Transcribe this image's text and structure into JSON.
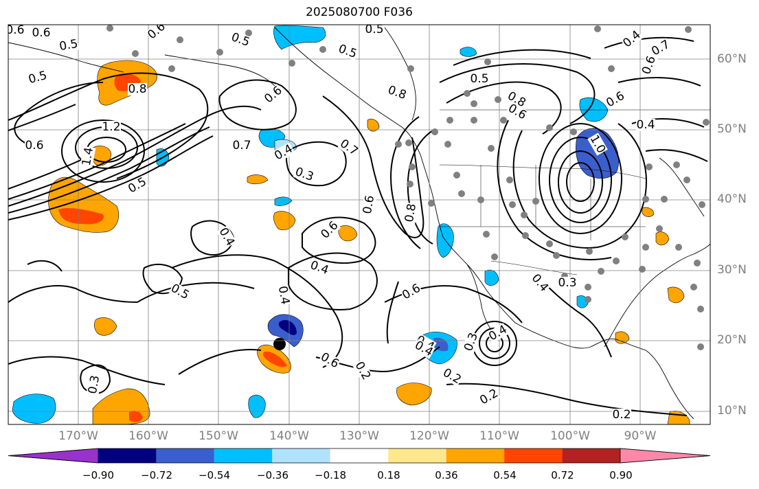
{
  "title": "2025080700 F036",
  "lat_labels": [
    "60°N",
    "50°N",
    "40°N",
    "30°N",
    "20°N",
    "10°N"
  ],
  "lon_labels": [
    "170°W",
    "160°W",
    "150°W",
    "140°W",
    "130°W",
    "120°W",
    "110°W",
    "100°W",
    "90°W"
  ],
  "colorbar": {
    "tick_labels": [
      "−0.90",
      "−0.72",
      "−0.54",
      "−0.36",
      "−0.18",
      "0.18",
      "0.36",
      "0.54",
      "0.72",
      "0.90"
    ],
    "colors": [
      "#9932cc",
      "#000080",
      "#3a5fcd",
      "#00bfff",
      "#b0e2ff",
      "#ffffff",
      "#ffe88c",
      "#ffa500",
      "#ff4500",
      "#b22222",
      "#ff88aa"
    ]
  },
  "contour_labels": [
    "0.6",
    "0.5",
    "0.6",
    "0.5",
    "0.6",
    "0.8",
    "1.2",
    "1.4",
    "0.5",
    "0.6",
    "0.4",
    "0.3",
    "0.7",
    "0.6",
    "0.4",
    "0.5",
    "0.4",
    "0.5",
    "0.8",
    "0.5",
    "0.8",
    "0.6",
    "0.6",
    "0.7",
    "0.6",
    "0.8",
    "0.4",
    "0.6",
    "0.4",
    "1.0",
    "0.5",
    "0.6",
    "0.7",
    "0.6",
    "0.5",
    "0.4",
    "0.3",
    "0.4",
    "0.6",
    "0.4",
    "0.2",
    "0.3",
    "0.3",
    "0.4",
    "0.2",
    "0.2",
    "0.4",
    "0.2"
  ],
  "fill_colors": {
    "land_border": "#000000",
    "grid": "#808080",
    "station_dot": "#808080"
  }
}
